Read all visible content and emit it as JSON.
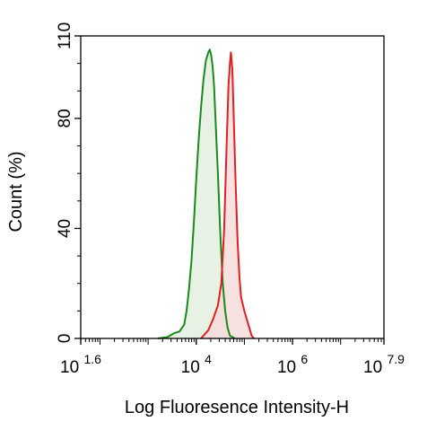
{
  "chart_data": {
    "type": "area",
    "title": "",
    "xlabel": "Log Fluoresence Intensity-H",
    "ylabel": "Count  (%)",
    "x_scale": "log10",
    "xlim_exponent": [
      1.6,
      7.9
    ],
    "ylim": [
      0,
      110
    ],
    "y_ticks": [
      0,
      40,
      80,
      110
    ],
    "x_ticks": [
      {
        "base": "10",
        "exp": "1.6",
        "value": 1.6
      },
      {
        "base": "10",
        "exp": "4",
        "value": 4
      },
      {
        "base": "10",
        "exp": "6",
        "value": 6
      },
      {
        "base": "10",
        "exp": "7.9",
        "value": 7.9
      }
    ],
    "series": [
      {
        "color": "#1a8a1a",
        "fill": "#e3f0e0",
        "points": [
          [
            3.2,
            0
          ],
          [
            3.4,
            0.5
          ],
          [
            3.55,
            2
          ],
          [
            3.65,
            2.5
          ],
          [
            3.75,
            5
          ],
          [
            3.8,
            10
          ],
          [
            3.85,
            18
          ],
          [
            3.9,
            28
          ],
          [
            3.95,
            42
          ],
          [
            4.0,
            58
          ],
          [
            4.05,
            72
          ],
          [
            4.1,
            84
          ],
          [
            4.15,
            94
          ],
          [
            4.2,
            101
          ],
          [
            4.25,
            104
          ],
          [
            4.28,
            105
          ],
          [
            4.31,
            103
          ],
          [
            4.34,
            99
          ],
          [
            4.37,
            92
          ],
          [
            4.4,
            80
          ],
          [
            4.45,
            60
          ],
          [
            4.5,
            38
          ],
          [
            4.55,
            20
          ],
          [
            4.6,
            10
          ],
          [
            4.65,
            4
          ],
          [
            4.7,
            1
          ],
          [
            4.8,
            0
          ]
        ]
      },
      {
        "color": "#e02020",
        "fill": "#f6dcdc",
        "points": [
          [
            4.1,
            0
          ],
          [
            4.25,
            3
          ],
          [
            4.35,
            7
          ],
          [
            4.45,
            12
          ],
          [
            4.52,
            20
          ],
          [
            4.58,
            40
          ],
          [
            4.63,
            70
          ],
          [
            4.67,
            92
          ],
          [
            4.7,
            100
          ],
          [
            4.72,
            104
          ],
          [
            4.75,
            98
          ],
          [
            4.78,
            80
          ],
          [
            4.82,
            55
          ],
          [
            4.86,
            35
          ],
          [
            4.9,
            22
          ],
          [
            4.93,
            15
          ],
          [
            5.0,
            10
          ],
          [
            5.05,
            7
          ],
          [
            5.1,
            4
          ],
          [
            5.15,
            1
          ],
          [
            5.2,
            0
          ]
        ]
      }
    ]
  }
}
